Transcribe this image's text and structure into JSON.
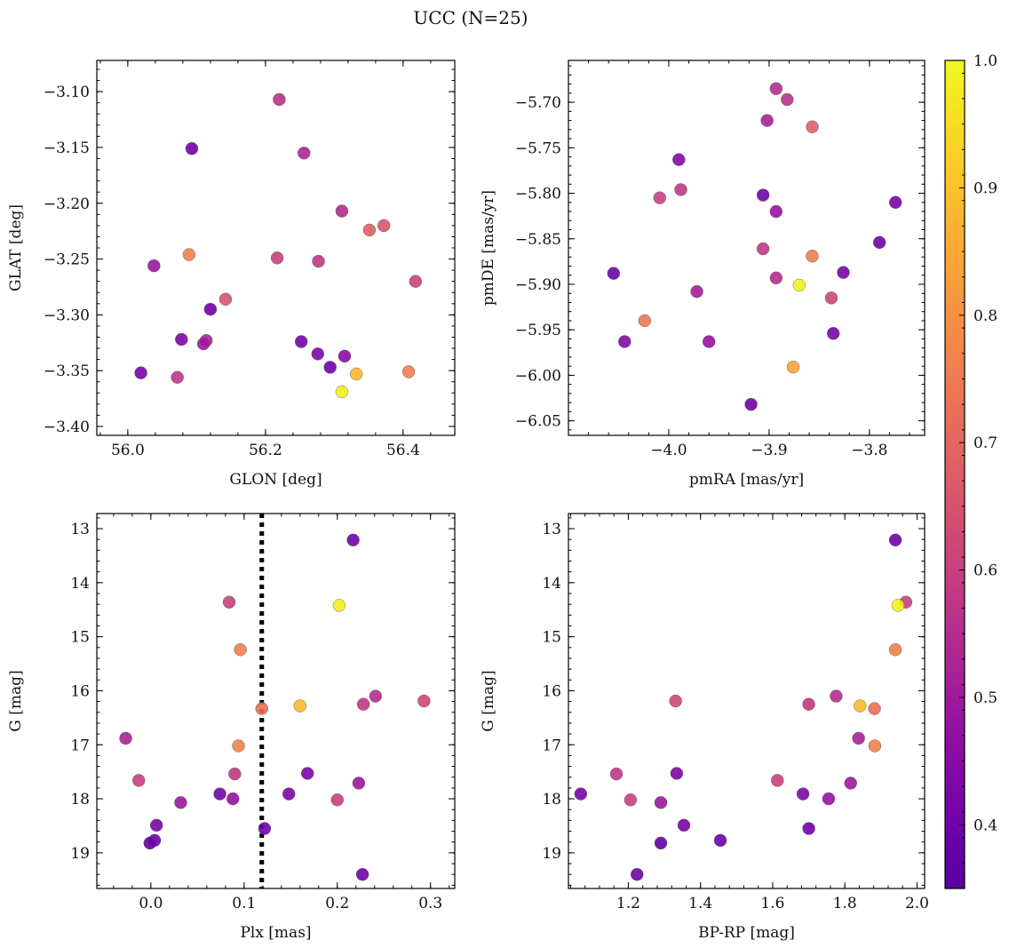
{
  "figure": {
    "title": "UCC (N=25)"
  },
  "colorbar": {
    "colormap": "plasma",
    "vmin": 0.35,
    "vmax": 1.0,
    "tick_labels": [
      "0.4",
      "0.5",
      "0.6",
      "0.7",
      "0.8",
      "0.9",
      "1.0"
    ],
    "tick_values": [
      0.4,
      0.5,
      0.6,
      0.7,
      0.8,
      0.9,
      1.0
    ]
  },
  "chart_data": [
    {
      "type": "scatter",
      "xlabel": "GLON [deg]",
      "ylabel": "GLAT [deg]",
      "xlim": [
        55.955,
        56.475
      ],
      "ylim": [
        -3.408,
        -3.072
      ],
      "invert_y": false,
      "xticks": [
        {
          "v": 56.0,
          "label": "56.0"
        },
        {
          "v": 56.2,
          "label": "56.2"
        },
        {
          "v": 56.4,
          "label": "56.4"
        }
      ],
      "yticks": [
        {
          "v": -3.1,
          "label": "−3.10"
        },
        {
          "v": -3.15,
          "label": "−3.15"
        },
        {
          "v": -3.2,
          "label": "−3.20"
        },
        {
          "v": -3.25,
          "label": "−3.25"
        },
        {
          "v": -3.3,
          "label": "−3.30"
        },
        {
          "v": -3.35,
          "label": "−3.35"
        },
        {
          "v": -3.4,
          "label": "−3.40"
        }
      ],
      "points": [
        {
          "x": 56.22,
          "y": -3.107,
          "c": 0.56
        },
        {
          "x": 56.093,
          "y": -3.151,
          "c": 0.4
        },
        {
          "x": 56.256,
          "y": -3.155,
          "c": 0.53
        },
        {
          "x": 56.311,
          "y": -3.207,
          "c": 0.55
        },
        {
          "x": 56.372,
          "y": -3.22,
          "c": 0.66
        },
        {
          "x": 56.351,
          "y": -3.224,
          "c": 0.68
        },
        {
          "x": 56.089,
          "y": -3.246,
          "c": 0.76
        },
        {
          "x": 56.217,
          "y": -3.249,
          "c": 0.6
        },
        {
          "x": 56.277,
          "y": -3.252,
          "c": 0.58
        },
        {
          "x": 56.038,
          "y": -3.256,
          "c": 0.49
        },
        {
          "x": 56.418,
          "y": -3.27,
          "c": 0.61
        },
        {
          "x": 56.142,
          "y": -3.286,
          "c": 0.65
        },
        {
          "x": 56.12,
          "y": -3.295,
          "c": 0.4
        },
        {
          "x": 56.078,
          "y": -3.322,
          "c": 0.43
        },
        {
          "x": 56.114,
          "y": -3.323,
          "c": 0.52
        },
        {
          "x": 56.11,
          "y": -3.326,
          "c": 0.5
        },
        {
          "x": 56.252,
          "y": -3.324,
          "c": 0.41
        },
        {
          "x": 56.276,
          "y": -3.335,
          "c": 0.43
        },
        {
          "x": 56.315,
          "y": -3.337,
          "c": 0.45
        },
        {
          "x": 56.294,
          "y": -3.347,
          "c": 0.4
        },
        {
          "x": 56.408,
          "y": -3.351,
          "c": 0.76
        },
        {
          "x": 56.019,
          "y": -3.352,
          "c": 0.41
        },
        {
          "x": 56.332,
          "y": -3.353,
          "c": 0.88
        },
        {
          "x": 56.072,
          "y": -3.356,
          "c": 0.58
        },
        {
          "x": 56.311,
          "y": -3.369,
          "c": 0.98
        }
      ]
    },
    {
      "type": "scatter",
      "xlabel": "pmRA [mas/yr]",
      "ylabel": "pmDE [mas/yr]",
      "xlim": [
        -4.1,
        -3.745
      ],
      "ylim": [
        -6.066,
        -5.654
      ],
      "invert_y": false,
      "xticks": [
        {
          "v": -4.0,
          "label": "−4.0"
        },
        {
          "v": -3.9,
          "label": "−3.9"
        },
        {
          "v": -3.8,
          "label": "−3.8"
        }
      ],
      "yticks": [
        {
          "v": -5.7,
          "label": "−5.70"
        },
        {
          "v": -5.75,
          "label": "−5.75"
        },
        {
          "v": -5.8,
          "label": "−5.80"
        },
        {
          "v": -5.85,
          "label": "−5.85"
        },
        {
          "v": -5.9,
          "label": "−5.90"
        },
        {
          "v": -5.95,
          "label": "−5.95"
        },
        {
          "v": -6.0,
          "label": "−6.00"
        },
        {
          "v": -6.05,
          "label": "−6.05"
        }
      ],
      "points": [
        {
          "x": -3.893,
          "y": -5.685,
          "c": 0.55
        },
        {
          "x": -3.882,
          "y": -5.697,
          "c": 0.56
        },
        {
          "x": -3.902,
          "y": -5.72,
          "c": 0.52
        },
        {
          "x": -3.857,
          "y": -5.727,
          "c": 0.68
        },
        {
          "x": -3.99,
          "y": -5.763,
          "c": 0.44
        },
        {
          "x": -3.906,
          "y": -5.802,
          "c": 0.4
        },
        {
          "x": -4.009,
          "y": -5.805,
          "c": 0.6
        },
        {
          "x": -3.988,
          "y": -5.796,
          "c": 0.58
        },
        {
          "x": -3.893,
          "y": -5.82,
          "c": 0.48
        },
        {
          "x": -3.774,
          "y": -5.81,
          "c": 0.42
        },
        {
          "x": -3.79,
          "y": -5.854,
          "c": 0.4
        },
        {
          "x": -3.906,
          "y": -5.861,
          "c": 0.58
        },
        {
          "x": -3.857,
          "y": -5.869,
          "c": 0.76
        },
        {
          "x": -4.055,
          "y": -5.888,
          "c": 0.4
        },
        {
          "x": -3.826,
          "y": -5.887,
          "c": 0.41
        },
        {
          "x": -3.893,
          "y": -5.893,
          "c": 0.55
        },
        {
          "x": -3.87,
          "y": -5.901,
          "c": 0.98
        },
        {
          "x": -3.972,
          "y": -5.908,
          "c": 0.51
        },
        {
          "x": -3.838,
          "y": -5.915,
          "c": 0.62
        },
        {
          "x": -4.024,
          "y": -5.94,
          "c": 0.74
        },
        {
          "x": -3.836,
          "y": -5.954,
          "c": 0.41
        },
        {
          "x": -4.044,
          "y": -5.963,
          "c": 0.44
        },
        {
          "x": -3.96,
          "y": -5.963,
          "c": 0.48
        },
        {
          "x": -3.876,
          "y": -5.991,
          "c": 0.84
        },
        {
          "x": -3.918,
          "y": -6.032,
          "c": 0.4
        }
      ]
    },
    {
      "type": "scatter",
      "xlabel": "Plx [mas]",
      "ylabel": "G [mag]",
      "xlim": [
        -0.058,
        0.326
      ],
      "ylim": [
        12.72,
        19.66
      ],
      "invert_y": true,
      "vline": {
        "x": 0.119,
        "style": "dotted"
      },
      "xticks": [
        {
          "v": 0.0,
          "label": "0.0"
        },
        {
          "v": 0.1,
          "label": "0.1"
        },
        {
          "v": 0.2,
          "label": "0.2"
        },
        {
          "v": 0.3,
          "label": "0.3"
        }
      ],
      "yticks": [
        {
          "v": 13,
          "label": "13"
        },
        {
          "v": 14,
          "label": "14"
        },
        {
          "v": 15,
          "label": "15"
        },
        {
          "v": 16,
          "label": "16"
        },
        {
          "v": 17,
          "label": "17"
        },
        {
          "v": 18,
          "label": "18"
        },
        {
          "v": 19,
          "label": "19"
        }
      ],
      "points": [
        {
          "x": 0.217,
          "y": 13.21,
          "c": 0.4
        },
        {
          "x": 0.084,
          "y": 14.36,
          "c": 0.6
        },
        {
          "x": 0.202,
          "y": 14.42,
          "c": 0.98
        },
        {
          "x": 0.096,
          "y": 15.24,
          "c": 0.76
        },
        {
          "x": 0.241,
          "y": 16.1,
          "c": 0.55
        },
        {
          "x": 0.293,
          "y": 16.19,
          "c": 0.62
        },
        {
          "x": 0.228,
          "y": 16.25,
          "c": 0.58
        },
        {
          "x": 0.16,
          "y": 16.28,
          "c": 0.88
        },
        {
          "x": 0.119,
          "y": 16.33,
          "c": 0.72
        },
        {
          "x": -0.027,
          "y": 16.88,
          "c": 0.52
        },
        {
          "x": 0.094,
          "y": 17.02,
          "c": 0.76
        },
        {
          "x": 0.09,
          "y": 17.54,
          "c": 0.58
        },
        {
          "x": 0.168,
          "y": 17.53,
          "c": 0.43
        },
        {
          "x": -0.013,
          "y": 17.66,
          "c": 0.6
        },
        {
          "x": 0.223,
          "y": 17.71,
          "c": 0.5
        },
        {
          "x": 0.074,
          "y": 17.91,
          "c": 0.41
        },
        {
          "x": 0.148,
          "y": 17.91,
          "c": 0.43
        },
        {
          "x": 0.088,
          "y": 18.0,
          "c": 0.48
        },
        {
          "x": 0.2,
          "y": 18.02,
          "c": 0.6
        },
        {
          "x": 0.032,
          "y": 18.07,
          "c": 0.49
        },
        {
          "x": 0.006,
          "y": 18.49,
          "c": 0.42
        },
        {
          "x": 0.122,
          "y": 18.55,
          "c": 0.4
        },
        {
          "x": 0.004,
          "y": 18.77,
          "c": 0.4
        },
        {
          "x": -0.001,
          "y": 18.82,
          "c": 0.38
        },
        {
          "x": 0.227,
          "y": 19.4,
          "c": 0.4
        }
      ]
    },
    {
      "type": "scatter",
      "xlabel": "BP-RP [mag]",
      "ylabel": "G [mag]",
      "xlim": [
        1.034,
        2.021
      ],
      "ylim": [
        12.72,
        19.66
      ],
      "invert_y": true,
      "xticks": [
        {
          "v": 1.2,
          "label": "1.2"
        },
        {
          "v": 1.4,
          "label": "1.4"
        },
        {
          "v": 1.6,
          "label": "1.6"
        },
        {
          "v": 1.8,
          "label": "1.8"
        },
        {
          "v": 2.0,
          "label": "2.0"
        }
      ],
      "yticks": [
        {
          "v": 13,
          "label": "13"
        },
        {
          "v": 14,
          "label": "14"
        },
        {
          "v": 15,
          "label": "15"
        },
        {
          "v": 16,
          "label": "16"
        },
        {
          "v": 17,
          "label": "17"
        },
        {
          "v": 18,
          "label": "18"
        },
        {
          "v": 19,
          "label": "19"
        }
      ],
      "points": [
        {
          "x": 1.94,
          "y": 13.21,
          "c": 0.4
        },
        {
          "x": 1.969,
          "y": 14.36,
          "c": 0.6
        },
        {
          "x": 1.947,
          "y": 14.42,
          "c": 0.98
        },
        {
          "x": 1.94,
          "y": 15.24,
          "c": 0.76
        },
        {
          "x": 1.776,
          "y": 16.1,
          "c": 0.55
        },
        {
          "x": 1.331,
          "y": 16.19,
          "c": 0.62
        },
        {
          "x": 1.7,
          "y": 16.25,
          "c": 0.58
        },
        {
          "x": 1.842,
          "y": 16.28,
          "c": 0.88
        },
        {
          "x": 1.882,
          "y": 16.33,
          "c": 0.72
        },
        {
          "x": 1.838,
          "y": 16.88,
          "c": 0.52
        },
        {
          "x": 1.883,
          "y": 17.02,
          "c": 0.76
        },
        {
          "x": 1.167,
          "y": 17.54,
          "c": 0.58
        },
        {
          "x": 1.334,
          "y": 17.53,
          "c": 0.43
        },
        {
          "x": 1.613,
          "y": 17.66,
          "c": 0.6
        },
        {
          "x": 1.816,
          "y": 17.71,
          "c": 0.5
        },
        {
          "x": 1.068,
          "y": 17.91,
          "c": 0.41
        },
        {
          "x": 1.684,
          "y": 17.91,
          "c": 0.43
        },
        {
          "x": 1.755,
          "y": 18.0,
          "c": 0.48
        },
        {
          "x": 1.206,
          "y": 18.02,
          "c": 0.6
        },
        {
          "x": 1.29,
          "y": 18.07,
          "c": 0.49
        },
        {
          "x": 1.354,
          "y": 18.49,
          "c": 0.42
        },
        {
          "x": 1.7,
          "y": 18.55,
          "c": 0.4
        },
        {
          "x": 1.455,
          "y": 18.77,
          "c": 0.4
        },
        {
          "x": 1.29,
          "y": 18.82,
          "c": 0.38
        },
        {
          "x": 1.224,
          "y": 19.4,
          "c": 0.4
        }
      ]
    }
  ]
}
